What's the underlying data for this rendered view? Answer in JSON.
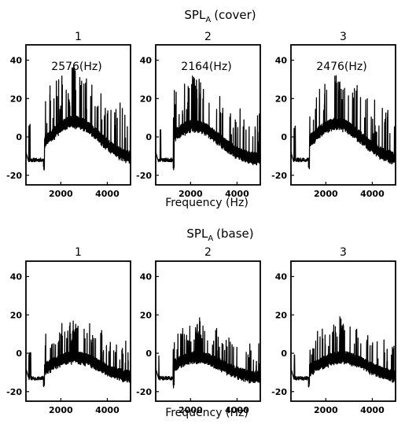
{
  "chart_data": [
    {
      "type": "line",
      "group_title_main": "SPL",
      "group_title_sub": "A",
      "group_title_suffix": "(cover)",
      "xlabel": "Frequency (Hz)",
      "ylabel": "",
      "xlim": [
        500,
        5000
      ],
      "ylim": [
        -25,
        48
      ],
      "xticks": [
        2000,
        4000
      ],
      "yticks": [
        40,
        20,
        0,
        -20
      ],
      "grid": false,
      "panels": [
        {
          "title": "1",
          "annotation": "2576(Hz)",
          "peak_hz": 2576,
          "seed": 11,
          "floor": -13,
          "ceiling": 7,
          "burst": 1.0
        },
        {
          "title": "2",
          "annotation": "2164(Hz)",
          "peak_hz": 2164,
          "seed": 23,
          "floor": -13,
          "ceiling": 5,
          "burst": 0.9
        },
        {
          "title": "3",
          "annotation": "2476(Hz)",
          "peak_hz": 2476,
          "seed": 37,
          "floor": -13,
          "ceiling": 6,
          "burst": 0.95
        }
      ]
    },
    {
      "type": "line",
      "group_title_main": "SPL",
      "group_title_sub": "A",
      "group_title_suffix": "(base)",
      "xlabel": "Frequency (Hz)",
      "ylabel": "",
      "xlim": [
        500,
        5000
      ],
      "ylim": [
        -25,
        48
      ],
      "xticks": [
        2000,
        4000
      ],
      "yticks": [
        40,
        20,
        0,
        -20
      ],
      "grid": false,
      "panels": [
        {
          "title": "1",
          "annotation": "",
          "peak_hz": 2600,
          "seed": 53,
          "floor": -14,
          "ceiling": -3,
          "burst": 0.7
        },
        {
          "title": "2",
          "annotation": "",
          "peak_hz": 2300,
          "seed": 71,
          "floor": -14,
          "ceiling": -3,
          "burst": 0.65
        },
        {
          "title": "3",
          "annotation": "",
          "peak_hz": 2700,
          "seed": 89,
          "floor": -14,
          "ceiling": -3,
          "burst": 0.65
        }
      ]
    }
  ]
}
